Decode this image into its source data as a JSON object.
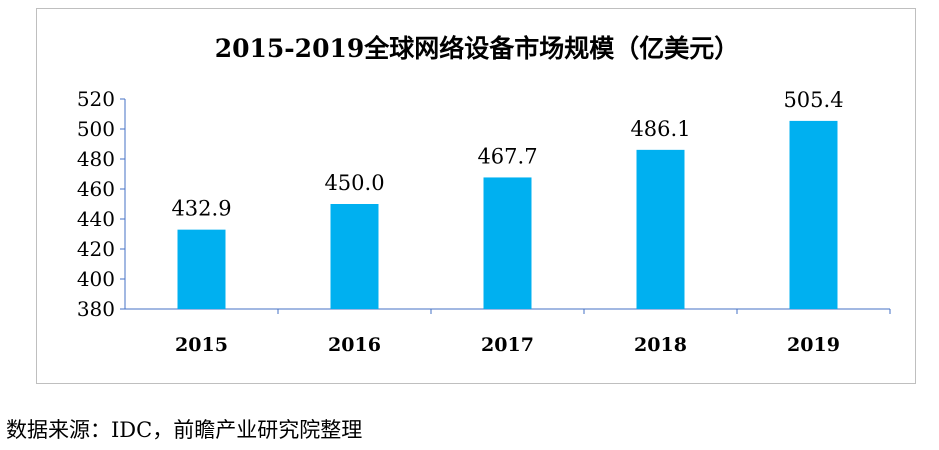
{
  "chart_data": {
    "type": "bar",
    "title": "2015-2019全球网络设备市场规模（亿美元）",
    "categories": [
      "2015",
      "2016",
      "2017",
      "2018",
      "2019"
    ],
    "values": [
      432.9,
      450.0,
      467.7,
      486.1,
      505.4
    ],
    "value_labels": [
      "432.9",
      "450.0",
      "467.7",
      "486.1",
      "505.4"
    ],
    "xlabel": "",
    "ylabel": "",
    "ylim": [
      380,
      520
    ],
    "yticks": [
      380,
      400,
      420,
      440,
      460,
      480,
      500,
      520
    ],
    "bar_color": "#00b0f0",
    "axis_color": "#4472c4",
    "grid": false,
    "legend": "none"
  },
  "source": "数据来源：IDC，前瞻产业研究院整理"
}
